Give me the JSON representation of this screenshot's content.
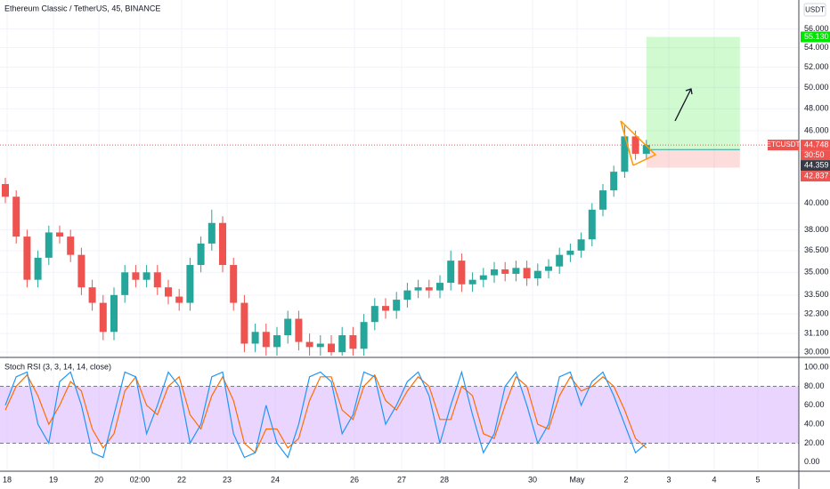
{
  "chart_data": {
    "type": "candlestick",
    "title": "Ethereum Classic / TetherUS, 45, BINANCE",
    "currency": "USDT",
    "log_scale": true,
    "grid": true,
    "ylim": [
      29.7,
      59.2
    ],
    "yticks": [
      {
        "value": 30,
        "label": "30.000"
      },
      {
        "value": 31.1,
        "label": "31.100"
      },
      {
        "value": 32.3,
        "label": "32.300"
      },
      {
        "value": 33.5,
        "label": "33.500"
      },
      {
        "value": 35,
        "label": "35.000"
      },
      {
        "value": 36.5,
        "label": "36.500"
      },
      {
        "value": 38,
        "label": "38.000"
      },
      {
        "value": 40,
        "label": "40.000"
      },
      {
        "value": 46,
        "label": "46.000"
      },
      {
        "value": 48,
        "label": "48.000"
      },
      {
        "value": 50,
        "label": "50.000"
      },
      {
        "value": 52,
        "label": "52.000"
      },
      {
        "value": 54,
        "label": "54.000"
      },
      {
        "value": 56,
        "label": "56.000"
      }
    ],
    "x_labels": [
      "18",
      "19",
      "20",
      "02:00",
      "22",
      "23",
      "24",
      "26",
      "27",
      "28",
      "30",
      "May",
      "2",
      "3",
      "4",
      "5"
    ],
    "up_color": "#26a69a",
    "down_color": "#ef5350",
    "open": [
      41.5,
      40.5,
      37.5,
      34.5,
      36.0,
      37.8,
      37.5,
      36.2,
      34.0,
      33.0,
      31.2,
      33.5,
      35.0,
      34.5,
      35.0,
      34.0,
      33.4,
      33.0,
      35.5,
      37.0,
      38.5,
      35.5,
      33.0,
      30.5,
      31.2,
      30.3,
      31.0,
      32.0,
      30.6,
      30.3,
      30.5,
      30.0,
      31.0,
      30.2,
      31.8,
      32.8,
      32.5,
      33.2,
      33.8,
      34.0,
      33.8,
      34.3,
      35.8,
      34.2,
      34.5,
      34.8,
      35.2,
      34.9,
      35.3,
      34.6,
      35.1,
      35.4,
      36.2,
      36.5,
      37.3,
      39.5,
      41.0,
      42.5,
      45.5,
      44.0
    ],
    "high": [
      42.0,
      41.0,
      38.0,
      36.5,
      38.3,
      38.3,
      38.0,
      36.7,
      34.5,
      33.5,
      34.0,
      35.5,
      35.5,
      35.5,
      35.5,
      34.5,
      33.9,
      36.0,
      37.5,
      39.5,
      39.0,
      36.0,
      33.5,
      31.7,
      31.7,
      31.5,
      32.5,
      32.5,
      31.1,
      31.0,
      31.0,
      31.5,
      31.5,
      32.3,
      33.3,
      33.3,
      33.7,
      34.3,
      34.5,
      34.5,
      34.8,
      36.5,
      36.3,
      35.0,
      35.3,
      35.7,
      35.7,
      35.8,
      35.8,
      35.6,
      35.9,
      36.7,
      37.0,
      37.8,
      40.0,
      41.5,
      43.0,
      46.5,
      46.0,
      45.2
    ],
    "low": [
      40.0,
      37.0,
      34.0,
      34.0,
      35.5,
      37.0,
      35.7,
      33.5,
      32.5,
      30.7,
      30.7,
      33.0,
      34.0,
      34.0,
      33.5,
      32.9,
      32.5,
      32.5,
      35.0,
      36.5,
      35.0,
      32.5,
      30.0,
      30.0,
      29.8,
      29.8,
      30.5,
      30.1,
      29.8,
      29.8,
      29.8,
      29.8,
      29.8,
      29.8,
      31.3,
      32.0,
      32.0,
      32.7,
      33.3,
      33.3,
      33.3,
      33.8,
      33.7,
      33.7,
      34.0,
      34.3,
      34.4,
      34.4,
      34.1,
      34.1,
      34.6,
      34.9,
      35.7,
      36.0,
      36.8,
      39.0,
      40.5,
      42.0,
      43.5,
      43.5
    ],
    "close": [
      40.5,
      37.5,
      34.5,
      36.0,
      37.8,
      37.5,
      36.2,
      34.0,
      33.0,
      31.2,
      33.5,
      35.0,
      34.5,
      35.0,
      34.0,
      33.4,
      33.0,
      35.5,
      37.0,
      38.5,
      35.5,
      33.0,
      30.5,
      31.2,
      30.3,
      31.0,
      32.0,
      30.6,
      30.3,
      30.5,
      30.0,
      31.0,
      30.2,
      31.8,
      32.8,
      32.5,
      33.2,
      33.8,
      34.0,
      33.8,
      34.3,
      35.8,
      34.2,
      34.5,
      34.8,
      35.2,
      34.9,
      35.3,
      34.6,
      35.1,
      35.4,
      36.2,
      36.5,
      37.3,
      39.5,
      41.0,
      42.5,
      45.5,
      44.0,
      44.748
    ],
    "position": {
      "target": 55.13,
      "entry": 44.359,
      "stop": 42.837
    },
    "symbol": "ETCUSDT",
    "countdown": "30:50",
    "tags": [
      {
        "value": 55.13,
        "label": "55.130",
        "color": "#00e600"
      },
      {
        "value": 44.748,
        "label": "44.748",
        "color": "#ef5350"
      },
      {
        "value": 44.359,
        "label": "44.359",
        "color": "#363a45"
      },
      {
        "value": 42.837,
        "label": "42.837",
        "color": "#ef5350"
      }
    ],
    "indicator": {
      "title": "Stoch RSI (3, 3, 14, 14, close)",
      "ylim": [
        -9.5,
        109.5
      ],
      "yticks": [
        {
          "value": 0,
          "label": "0.00"
        },
        {
          "value": 20,
          "label": "20.00"
        },
        {
          "value": 40,
          "label": "40.00"
        },
        {
          "value": 60,
          "label": "60.00"
        },
        {
          "value": 80,
          "label": "80.00"
        },
        {
          "value": 100,
          "label": "100.00"
        }
      ],
      "band": [
        20,
        80
      ],
      "band_color": "#d9b3ff",
      "k": {
        "color": "#2196f3",
        "values": [
          60,
          90,
          95,
          40,
          20,
          85,
          95,
          60,
          10,
          5,
          50,
          95,
          90,
          30,
          60,
          95,
          80,
          20,
          40,
          90,
          95,
          30,
          5,
          10,
          60,
          20,
          5,
          40,
          90,
          95,
          85,
          30,
          50,
          95,
          90,
          40,
          60,
          85,
          95,
          70,
          20,
          60,
          95,
          50,
          10,
          30,
          80,
          95,
          60,
          20,
          40,
          90,
          95,
          60,
          85,
          95,
          70,
          40,
          10,
          20
        ]
      },
      "d": {
        "color": "#ff6d00",
        "values": [
          55,
          80,
          92,
          70,
          40,
          60,
          85,
          75,
          35,
          15,
          30,
          75,
          90,
          60,
          50,
          80,
          90,
          50,
          35,
          70,
          90,
          65,
          20,
          10,
          35,
          35,
          15,
          25,
          65,
          90,
          90,
          55,
          45,
          80,
          92,
          65,
          55,
          75,
          90,
          80,
          45,
          45,
          80,
          70,
          30,
          25,
          60,
          90,
          80,
          40,
          35,
          70,
          90,
          75,
          80,
          90,
          80,
          55,
          25,
          15
        ]
      }
    }
  }
}
